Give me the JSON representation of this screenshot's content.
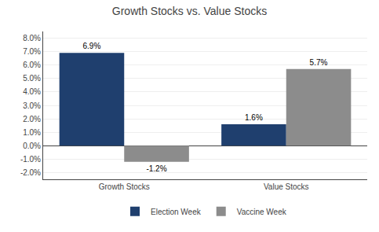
{
  "chart_data": {
    "type": "bar",
    "title": "Growth Stocks vs. Value Stocks",
    "categories": [
      "Growth Stocks",
      "Value Stocks"
    ],
    "series": [
      {
        "name": "Election Week",
        "color": "#1F3F6E",
        "values": [
          6.9,
          1.6
        ],
        "value_labels": [
          "6.9%",
          "1.6%"
        ]
      },
      {
        "name": "Vaccine Week",
        "color": "#8C8C8C",
        "values": [
          -1.2,
          5.7
        ],
        "value_labels": [
          "-1.2%",
          "5.7%"
        ]
      }
    ],
    "ylim": [
      -2.5,
      8.5
    ],
    "yticks": [
      {
        "value": -2.0,
        "label": "-2.0%"
      },
      {
        "value": -1.0,
        "label": "-1.0%"
      },
      {
        "value": 0.0,
        "label": "0.0%"
      },
      {
        "value": 1.0,
        "label": "1.0%"
      },
      {
        "value": 2.0,
        "label": "2.0%"
      },
      {
        "value": 3.0,
        "label": "3.0%"
      },
      {
        "value": 4.0,
        "label": "4.0%"
      },
      {
        "value": 5.0,
        "label": "5.0%"
      },
      {
        "value": 6.0,
        "label": "6.0%"
      },
      {
        "value": 7.0,
        "label": "7.0%"
      },
      {
        "value": 8.0,
        "label": "8.0%"
      }
    ],
    "grid": true,
    "legend": "bottom",
    "data_labels": true
  }
}
